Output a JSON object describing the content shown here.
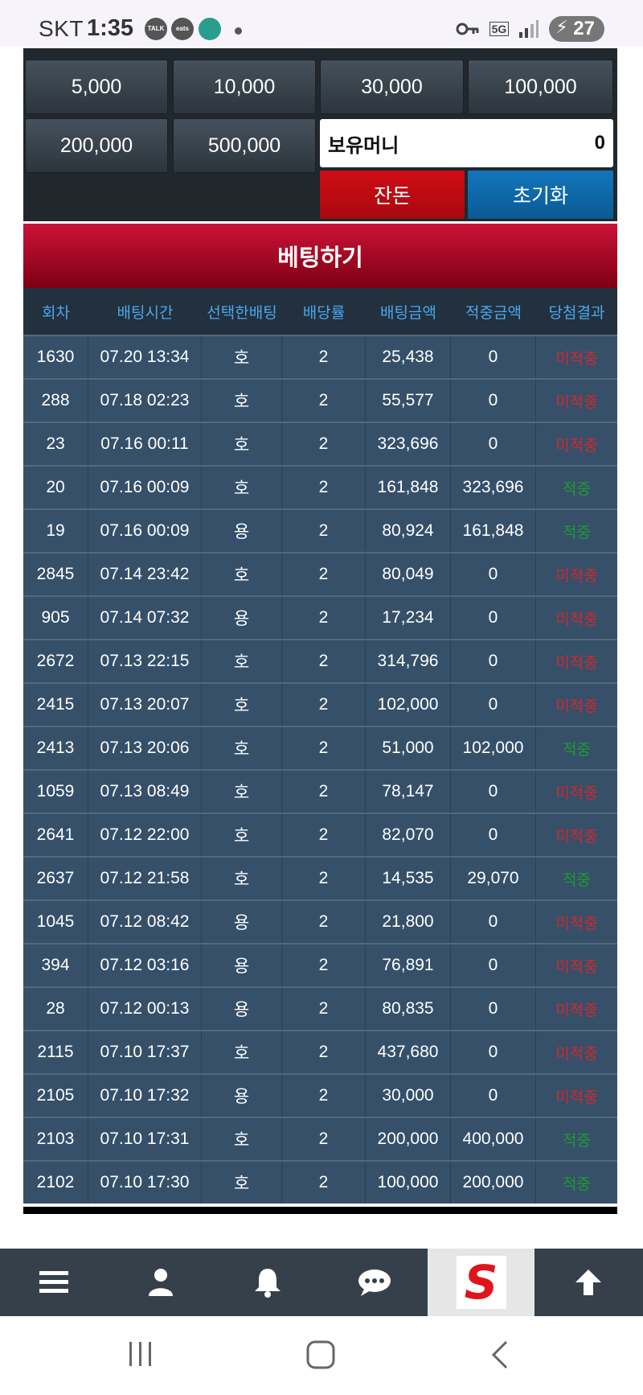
{
  "status_bar": {
    "carrier": "SKT",
    "time": "1:35",
    "notif_talk": "TALK",
    "notif_eats": "eats",
    "network": "5G",
    "battery": "27"
  },
  "chips": [
    "5,000",
    "10,000",
    "30,000",
    "100,000",
    "200,000",
    "500,000"
  ],
  "balance": {
    "label": "보유머니",
    "value": "0"
  },
  "buttons": {
    "change": "잔돈",
    "reset": "초기화",
    "bet": "베팅하기"
  },
  "table": {
    "headers": [
      "회차",
      "배팅시간",
      "선택한배팅",
      "배당률",
      "배팅금액",
      "적중금액",
      "당첨결과"
    ],
    "rows": [
      [
        "1630",
        "07.20 13:34",
        "호",
        "2",
        "25,438",
        "0",
        "미적중"
      ],
      [
        "288",
        "07.18 02:23",
        "호",
        "2",
        "55,577",
        "0",
        "미적중"
      ],
      [
        "23",
        "07.16 00:11",
        "호",
        "2",
        "323,696",
        "0",
        "미적중"
      ],
      [
        "20",
        "07.16 00:09",
        "호",
        "2",
        "161,848",
        "323,696",
        "적중"
      ],
      [
        "19",
        "07.16 00:09",
        "용",
        "2",
        "80,924",
        "161,848",
        "적중"
      ],
      [
        "2845",
        "07.14 23:42",
        "호",
        "2",
        "80,049",
        "0",
        "미적중"
      ],
      [
        "905",
        "07.14 07:32",
        "용",
        "2",
        "17,234",
        "0",
        "미적중"
      ],
      [
        "2672",
        "07.13 22:15",
        "호",
        "2",
        "314,796",
        "0",
        "미적중"
      ],
      [
        "2415",
        "07.13 20:07",
        "호",
        "2",
        "102,000",
        "0",
        "미적중"
      ],
      [
        "2413",
        "07.13 20:06",
        "호",
        "2",
        "51,000",
        "102,000",
        "적중"
      ],
      [
        "1059",
        "07.13 08:49",
        "호",
        "2",
        "78,147",
        "0",
        "미적중"
      ],
      [
        "2641",
        "07.12 22:00",
        "호",
        "2",
        "82,070",
        "0",
        "미적중"
      ],
      [
        "2637",
        "07.12 21:58",
        "호",
        "2",
        "14,535",
        "29,070",
        "적중"
      ],
      [
        "1045",
        "07.12 08:42",
        "용",
        "2",
        "21,800",
        "0",
        "미적중"
      ],
      [
        "394",
        "07.12 03:16",
        "용",
        "2",
        "76,891",
        "0",
        "미적중"
      ],
      [
        "28",
        "07.12 00:13",
        "용",
        "2",
        "80,835",
        "0",
        "미적중"
      ],
      [
        "2115",
        "07.10 17:37",
        "호",
        "2",
        "437,680",
        "0",
        "미적중"
      ],
      [
        "2105",
        "07.10 17:32",
        "용",
        "2",
        "30,000",
        "0",
        "미적중"
      ],
      [
        "2103",
        "07.10 17:31",
        "호",
        "2",
        "200,000",
        "400,000",
        "적중"
      ],
      [
        "2102",
        "07.10 17:30",
        "호",
        "2",
        "100,000",
        "200,000",
        "적중"
      ]
    ]
  },
  "bottom_nav": {
    "icons": [
      "menu-icon",
      "user-icon",
      "bell-icon",
      "chat-icon",
      "s-logo",
      "arrow-up-icon"
    ],
    "logo_letter": "S"
  },
  "colors": {
    "win": "#1f9a2e",
    "lose": "#d6262a",
    "header_text": "#4aa8f0",
    "bet_bar": "#b30b2a"
  }
}
